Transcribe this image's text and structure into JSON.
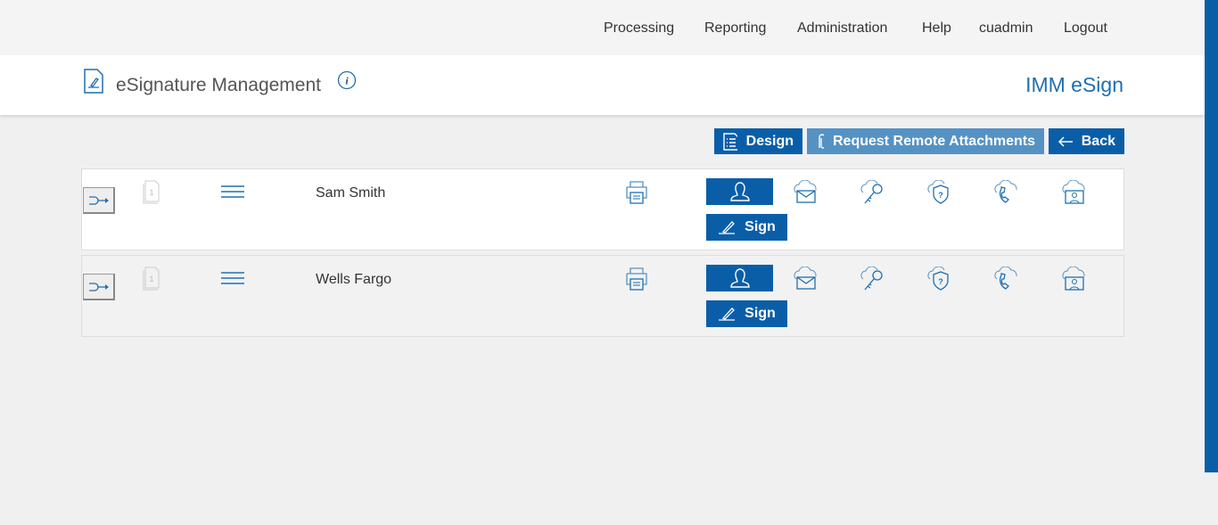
{
  "nav": {
    "items": [
      "Processing",
      "Reporting",
      "Administration",
      "Help",
      "cuadmin",
      "Logout"
    ]
  },
  "header": {
    "title": "eSignature Management",
    "brand": "IMM eSign"
  },
  "toolbar": {
    "design": "Design",
    "request": "Request Remote Attachments",
    "back": "Back"
  },
  "rows": [
    {
      "name": "Sam Smith",
      "sign": "Sign",
      "page": "1"
    },
    {
      "name": "Wells Fargo",
      "sign": "Sign",
      "page": "1"
    }
  ],
  "colors": {
    "primary": "#0a5ea8",
    "light": "#5592c4"
  }
}
